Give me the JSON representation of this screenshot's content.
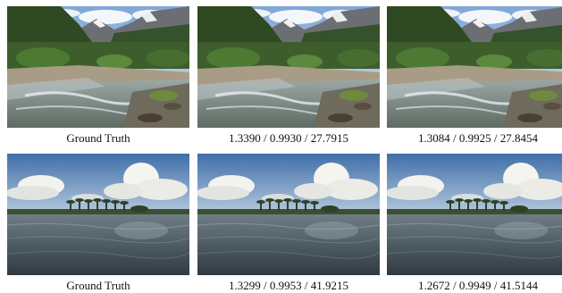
{
  "figure": {
    "rows": [
      {
        "scene": "mountain-stream",
        "panels": [
          {
            "caption": "Ground Truth"
          },
          {
            "caption": "1.3390 / 0.9930 / 27.7915"
          },
          {
            "caption": "1.3084 / 0.9925 / 27.8454"
          }
        ]
      },
      {
        "scene": "lake-island",
        "panels": [
          {
            "caption": "Ground Truth"
          },
          {
            "caption": "1.3299 / 0.9953 / 41.9215"
          },
          {
            "caption": "1.2672 / 0.9949 / 41.5144"
          }
        ]
      }
    ]
  }
}
